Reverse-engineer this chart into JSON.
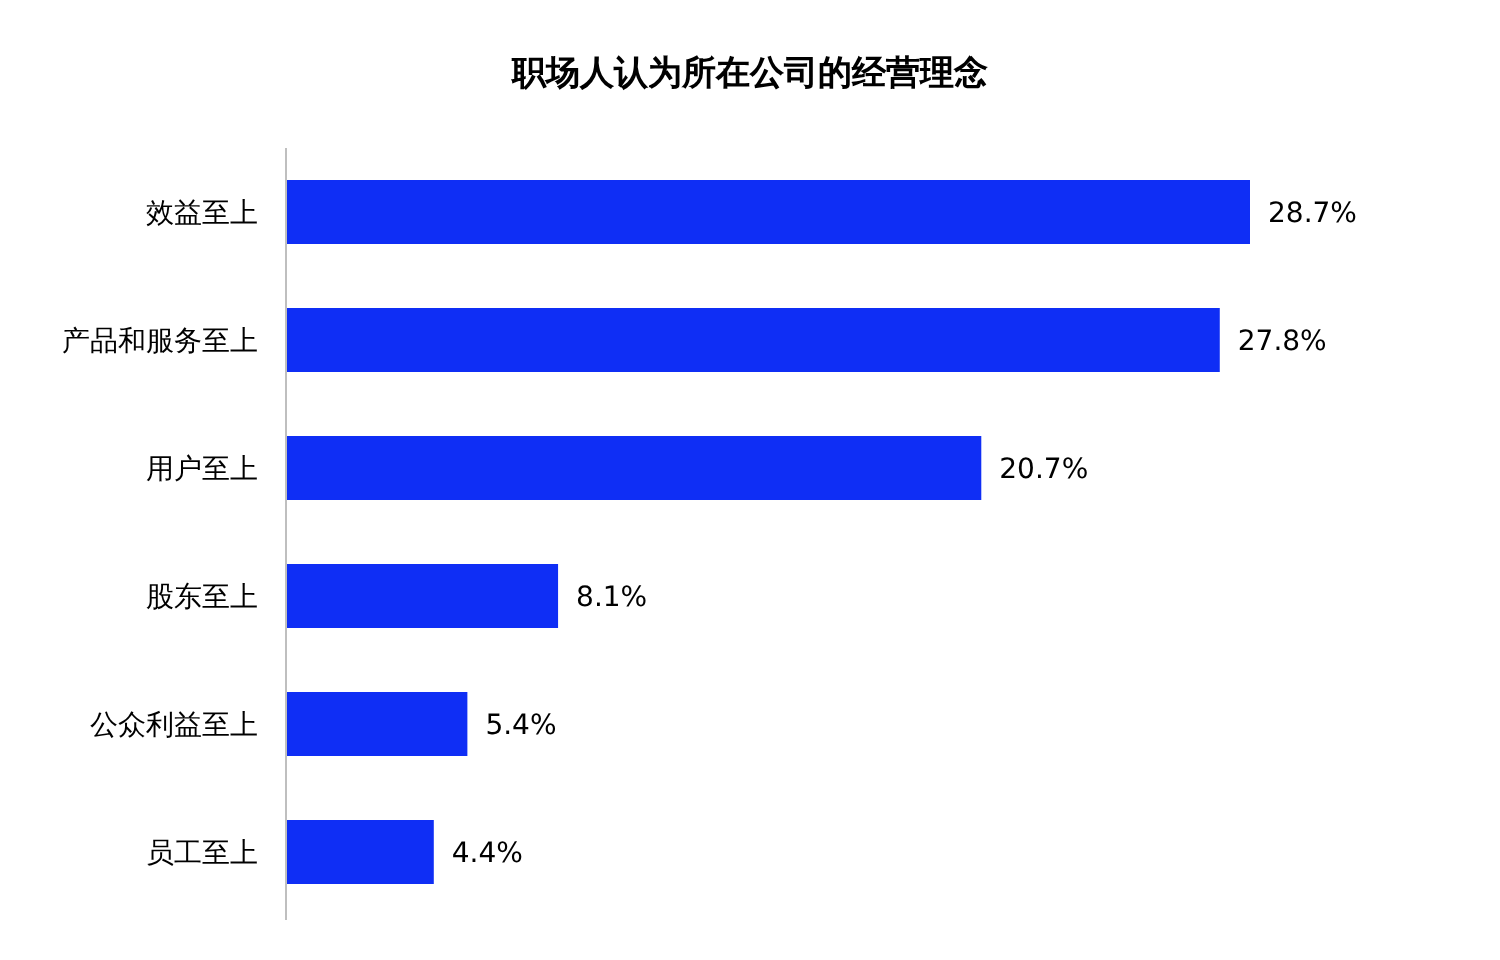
{
  "chart_data": {
    "type": "bar",
    "orientation": "horizontal",
    "title": "职场人认为所在公司的经营理念",
    "categories": [
      "效益至上",
      "产品和服务至上",
      "用户至上",
      "股东至上",
      "公众利益至上",
      "员工至上"
    ],
    "values": [
      28.7,
      27.8,
      20.7,
      8.1,
      5.4,
      4.4
    ],
    "value_labels": [
      "28.7%",
      "27.8%",
      "20.7%",
      "8.1%",
      "5.4%",
      "4.4%"
    ],
    "color": "#0f2ef5"
  }
}
